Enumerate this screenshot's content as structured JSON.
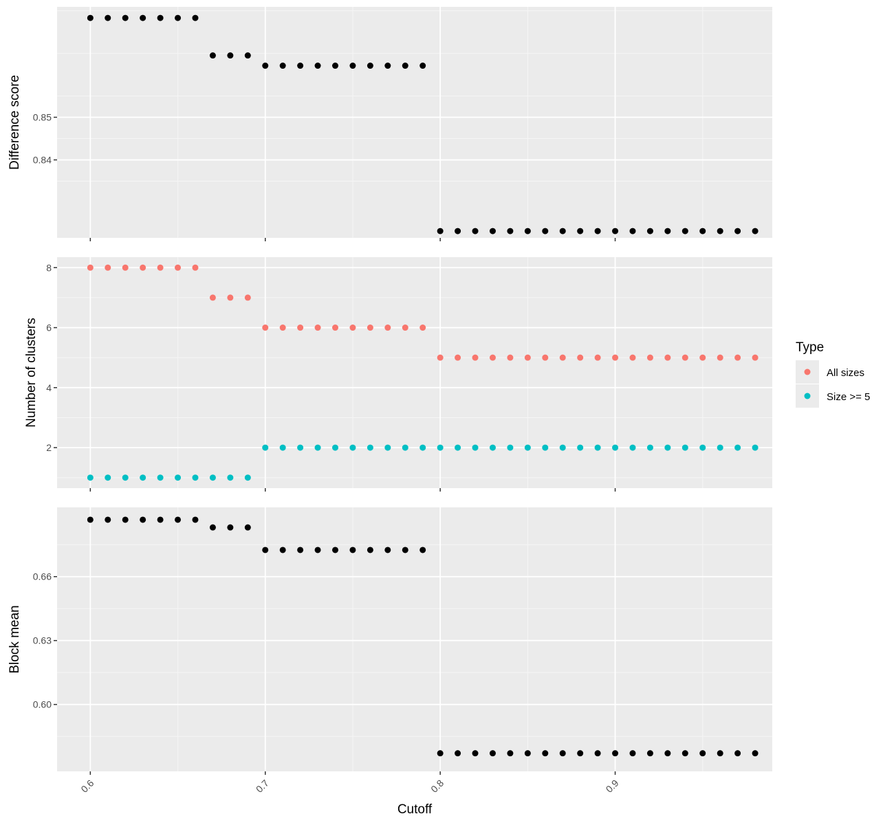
{
  "chart_data": [
    {
      "type": "scatter",
      "ylabel": "Difference score",
      "xlabel": "",
      "grid": true,
      "yticks": [
        0.84,
        0.85
      ],
      "ytick_labels": [
        "0.84",
        "0.85"
      ],
      "ylim": [
        0.8217,
        0.8759
      ],
      "xlim": [
        0.581,
        0.9898
      ],
      "series": [
        {
          "color": "#000000",
          "x": [
            0.6,
            0.61,
            0.62,
            0.63,
            0.64,
            0.65,
            0.66,
            0.67,
            0.68,
            0.69,
            0.7,
            0.71,
            0.72,
            0.73,
            0.74,
            0.75,
            0.76,
            0.77,
            0.78,
            0.79,
            0.8,
            0.81,
            0.82,
            0.83,
            0.84,
            0.85,
            0.86,
            0.87,
            0.88,
            0.89,
            0.9,
            0.91,
            0.92,
            0.93,
            0.94,
            0.95,
            0.96,
            0.97,
            0.98
          ],
          "y": [
            0.8733,
            0.8733,
            0.8733,
            0.8733,
            0.8733,
            0.8733,
            0.8733,
            0.8645,
            0.8645,
            0.8645,
            0.8621,
            0.8621,
            0.8621,
            0.8621,
            0.8621,
            0.8621,
            0.8621,
            0.8621,
            0.8621,
            0.8621,
            0.8233,
            0.8233,
            0.8233,
            0.8233,
            0.8233,
            0.8233,
            0.8233,
            0.8233,
            0.8233,
            0.8233,
            0.8233,
            0.8233,
            0.8233,
            0.8233,
            0.8233,
            0.8233,
            0.8233,
            0.8233,
            0.8233
          ]
        }
      ]
    },
    {
      "type": "scatter",
      "ylabel": "Number of clusters",
      "xlabel": "",
      "grid": true,
      "yticks": [
        2,
        4,
        6,
        8
      ],
      "ytick_labels": [
        "2",
        "4",
        "6",
        "8"
      ],
      "ylim": [
        0.65,
        8.35
      ],
      "xlim": [
        0.581,
        0.9898
      ],
      "legend": {
        "title": "Type",
        "position": "right",
        "entries": [
          "All sizes",
          "Size >= 5"
        ]
      },
      "series": [
        {
          "name": "All sizes",
          "color": "#F8766D",
          "x": [
            0.6,
            0.61,
            0.62,
            0.63,
            0.64,
            0.65,
            0.66,
            0.67,
            0.68,
            0.69,
            0.7,
            0.71,
            0.72,
            0.73,
            0.74,
            0.75,
            0.76,
            0.77,
            0.78,
            0.79,
            0.8,
            0.81,
            0.82,
            0.83,
            0.84,
            0.85,
            0.86,
            0.87,
            0.88,
            0.89,
            0.9,
            0.91,
            0.92,
            0.93,
            0.94,
            0.95,
            0.96,
            0.97,
            0.98
          ],
          "y": [
            8,
            8,
            8,
            8,
            8,
            8,
            8,
            7,
            7,
            7,
            6,
            6,
            6,
            6,
            6,
            6,
            6,
            6,
            6,
            6,
            5,
            5,
            5,
            5,
            5,
            5,
            5,
            5,
            5,
            5,
            5,
            5,
            5,
            5,
            5,
            5,
            5,
            5,
            5
          ]
        },
        {
          "name": "Size >= 5",
          "color": "#00BFC4",
          "x": [
            0.6,
            0.61,
            0.62,
            0.63,
            0.64,
            0.65,
            0.66,
            0.67,
            0.68,
            0.69,
            0.7,
            0.71,
            0.72,
            0.73,
            0.74,
            0.75,
            0.76,
            0.77,
            0.78,
            0.79,
            0.8,
            0.81,
            0.82,
            0.83,
            0.84,
            0.85,
            0.86,
            0.87,
            0.88,
            0.89,
            0.9,
            0.91,
            0.92,
            0.93,
            0.94,
            0.95,
            0.96,
            0.97,
            0.98
          ],
          "y": [
            1,
            1,
            1,
            1,
            1,
            1,
            1,
            1,
            1,
            1,
            2,
            2,
            2,
            2,
            2,
            2,
            2,
            2,
            2,
            2,
            2,
            2,
            2,
            2,
            2,
            2,
            2,
            2,
            2,
            2,
            2,
            2,
            2,
            2,
            2,
            2,
            2,
            2,
            2
          ]
        }
      ]
    },
    {
      "type": "scatter",
      "ylabel": "Block mean",
      "xlabel": "Cutoff",
      "grid": true,
      "xticks": [
        0.6,
        0.7,
        0.8,
        0.9
      ],
      "xtick_labels": [
        "0.6",
        "0.7",
        "0.8",
        "0.9"
      ],
      "yticks": [
        0.6,
        0.63,
        0.66
      ],
      "ytick_labels": [
        "0.60",
        "0.63",
        "0.66"
      ],
      "ylim": [
        0.5686,
        0.6925
      ],
      "xlim": [
        0.581,
        0.9898
      ],
      "series": [
        {
          "color": "#000000",
          "x": [
            0.6,
            0.61,
            0.62,
            0.63,
            0.64,
            0.65,
            0.66,
            0.67,
            0.68,
            0.69,
            0.7,
            0.71,
            0.72,
            0.73,
            0.74,
            0.75,
            0.76,
            0.77,
            0.78,
            0.79,
            0.8,
            0.81,
            0.82,
            0.83,
            0.84,
            0.85,
            0.86,
            0.87,
            0.88,
            0.89,
            0.9,
            0.91,
            0.92,
            0.93,
            0.94,
            0.95,
            0.96,
            0.97,
            0.98
          ],
          "y": [
            0.6867,
            0.6867,
            0.6867,
            0.6867,
            0.6867,
            0.6867,
            0.6867,
            0.6831,
            0.6831,
            0.6831,
            0.6725,
            0.6725,
            0.6725,
            0.6725,
            0.6725,
            0.6725,
            0.6725,
            0.6725,
            0.6725,
            0.6725,
            0.5771,
            0.5771,
            0.5771,
            0.5771,
            0.5771,
            0.5771,
            0.5771,
            0.5771,
            0.5771,
            0.5771,
            0.5771,
            0.5771,
            0.5771,
            0.5771,
            0.5771,
            0.5771,
            0.5771,
            0.5771,
            0.5771
          ]
        }
      ]
    }
  ]
}
